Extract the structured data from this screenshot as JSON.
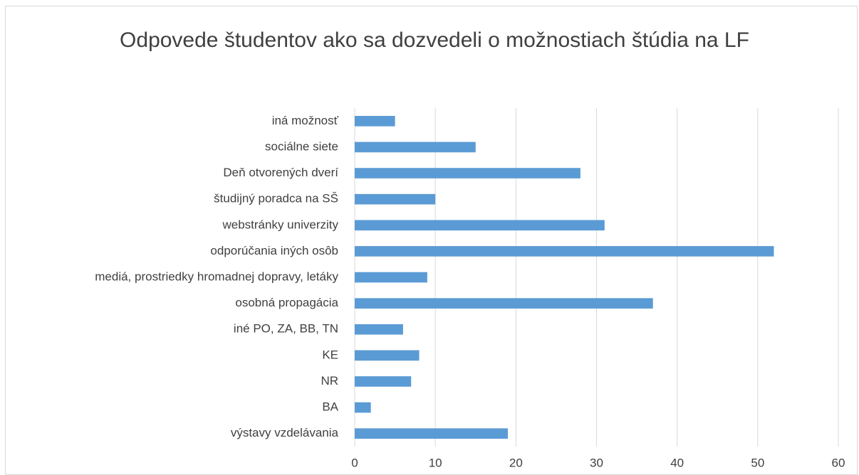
{
  "chart_data": {
    "type": "bar",
    "orientation": "horizontal",
    "title": "Odpovede študentov ako sa dozvedeli o možnostiach štúdia na LF",
    "categories": [
      "iná možnosť",
      "sociálne siete",
      "Deň otvorených dverí",
      "študijný poradca na SŠ",
      "webstránky univerzity",
      "odporúčania iných osôb",
      "mediá, prostriedky hromadnej dopravy, letáky",
      "osobná propagácia",
      "iné PO, ZA, BB, TN",
      "KE",
      "NR",
      "BA",
      "výstavy vzdelávania"
    ],
    "values": [
      5,
      15,
      28,
      10,
      31,
      52,
      9,
      37,
      6,
      8,
      7,
      2,
      19
    ],
    "color": "#5b9bd5",
    "xlim": [
      0,
      60
    ],
    "xticks": [
      0,
      10,
      20,
      30,
      40,
      50,
      60
    ],
    "grid": true
  }
}
